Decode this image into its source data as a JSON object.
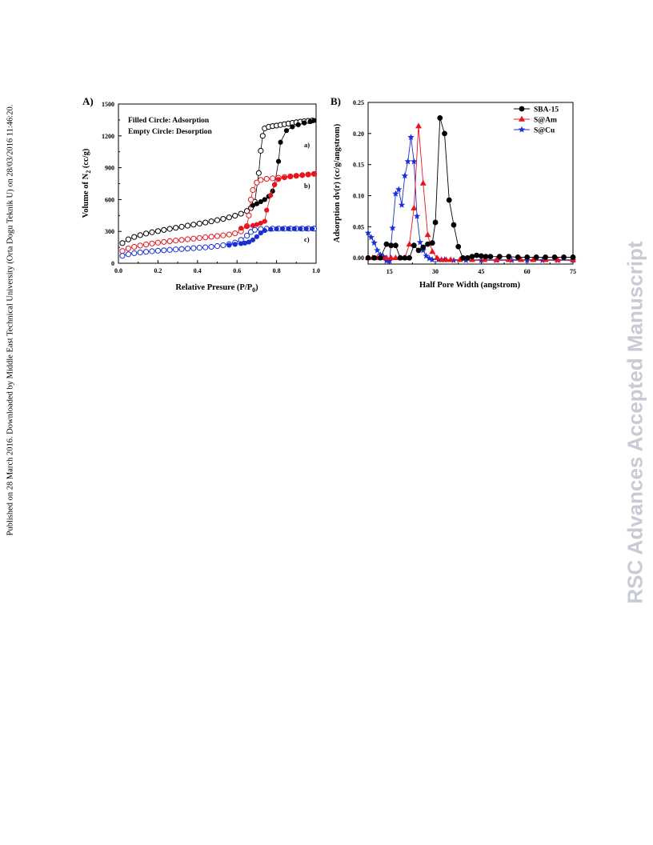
{
  "side_note": "Published on 28 March 2016. Downloaded by Middle East Technical University (Orta Dogu Teknik U) on 28/03/2016 11:46:20.",
  "watermark": "RSC Advances Accepted Manuscript",
  "chart_data": [
    {
      "panel_label": "A)",
      "type": "scatter",
      "xlabel": "Relative Presure (P/P",
      "xlabel_sub": "0",
      "xlabel_end": ")",
      "ylabel": "Volume of N",
      "ylabel_sub": "2",
      "ylabel_end": " (cc/g)",
      "xlim": [
        0,
        1.0
      ],
      "ylim": [
        0,
        1500
      ],
      "xticks": [
        "0.0",
        "0.2",
        "0.4",
        "0.6",
        "0.8",
        "1.0"
      ],
      "yticks": [
        "0",
        "300",
        "600",
        "900",
        "1200",
        "1500"
      ],
      "annotations": [
        "Filled Circle: Adsorption",
        "Empty Circle: Desorption"
      ],
      "curve_labels": [
        "a)",
        "b)",
        "c)"
      ],
      "series": [
        {
          "label": "a)",
          "color": "#000000",
          "desorption": [
            [
              0.02,
              190
            ],
            [
              0.05,
              225
            ],
            [
              0.08,
              248
            ],
            [
              0.11,
              265
            ],
            [
              0.14,
              280
            ],
            [
              0.17,
              292
            ],
            [
              0.2,
              303
            ],
            [
              0.23,
              314
            ],
            [
              0.26,
              324
            ],
            [
              0.29,
              334
            ],
            [
              0.32,
              344
            ],
            [
              0.35,
              354
            ],
            [
              0.38,
              364
            ],
            [
              0.41,
              374
            ],
            [
              0.44,
              384
            ],
            [
              0.47,
              395
            ],
            [
              0.5,
              406
            ],
            [
              0.53,
              418
            ],
            [
              0.56,
              432
            ],
            [
              0.59,
              448
            ],
            [
              0.62,
              467
            ],
            [
              0.65,
              492
            ],
            [
              0.67,
              520
            ],
            [
              0.69,
              580
            ],
            [
              0.71,
              850
            ],
            [
              0.72,
              1060
            ],
            [
              0.73,
              1200
            ],
            [
              0.74,
              1270
            ],
            [
              0.76,
              1285
            ],
            [
              0.78,
              1292
            ],
            [
              0.8,
              1297
            ],
            [
              0.82,
              1303
            ],
            [
              0.84,
              1310
            ],
            [
              0.86,
              1316
            ],
            [
              0.88,
              1322
            ],
            [
              0.9,
              1328
            ],
            [
              0.92,
              1333
            ],
            [
              0.94,
              1337
            ],
            [
              0.96,
              1341
            ],
            [
              0.98,
              1345
            ]
          ],
          "adsorption": [
            [
              0.68,
              545
            ],
            [
              0.7,
              560
            ],
            [
              0.72,
              580
            ],
            [
              0.74,
              600
            ],
            [
              0.76,
              630
            ],
            [
              0.78,
              680
            ],
            [
              0.79,
              740
            ],
            [
              0.81,
              960
            ],
            [
              0.82,
              1140
            ],
            [
              0.85,
              1250
            ],
            [
              0.88,
              1285
            ],
            [
              0.91,
              1305
            ],
            [
              0.94,
              1322
            ],
            [
              0.97,
              1335
            ],
            [
              0.99,
              1345
            ]
          ]
        },
        {
          "label": "b)",
          "color": "#e8141e",
          "desorption": [
            [
              0.02,
              115
            ],
            [
              0.05,
              140
            ],
            [
              0.08,
              155
            ],
            [
              0.11,
              167
            ],
            [
              0.14,
              177
            ],
            [
              0.17,
              186
            ],
            [
              0.2,
              194
            ],
            [
              0.23,
              201
            ],
            [
              0.26,
              208
            ],
            [
              0.29,
              214
            ],
            [
              0.32,
              220
            ],
            [
              0.35,
              226
            ],
            [
              0.38,
              232
            ],
            [
              0.41,
              238
            ],
            [
              0.44,
              244
            ],
            [
              0.47,
              250
            ],
            [
              0.5,
              256
            ],
            [
              0.53,
              263
            ],
            [
              0.56,
              271
            ],
            [
              0.59,
              282
            ],
            [
              0.62,
              300
            ],
            [
              0.65,
              350
            ],
            [
              0.66,
              450
            ],
            [
              0.67,
              600
            ],
            [
              0.68,
              690
            ],
            [
              0.7,
              760
            ],
            [
              0.72,
              785
            ],
            [
              0.75,
              795
            ],
            [
              0.78,
              800
            ],
            [
              0.81,
              805
            ],
            [
              0.84,
              812
            ],
            [
              0.87,
              818
            ],
            [
              0.9,
              824
            ],
            [
              0.93,
              830
            ],
            [
              0.96,
              836
            ],
            [
              0.99,
              842
            ]
          ],
          "adsorption": [
            [
              0.62,
              330
            ],
            [
              0.65,
              345
            ],
            [
              0.68,
              355
            ],
            [
              0.7,
              365
            ],
            [
              0.72,
              378
            ],
            [
              0.74,
              395
            ],
            [
              0.75,
              500
            ],
            [
              0.77,
              640
            ],
            [
              0.79,
              740
            ],
            [
              0.81,
              790
            ],
            [
              0.84,
              805
            ],
            [
              0.87,
              815
            ],
            [
              0.9,
              822
            ],
            [
              0.93,
              830
            ],
            [
              0.96,
              836
            ],
            [
              0.99,
              842
            ]
          ]
        },
        {
          "label": "c)",
          "color": "#1a2ed8",
          "desorption": [
            [
              0.02,
              70
            ],
            [
              0.05,
              85
            ],
            [
              0.08,
              95
            ],
            [
              0.11,
              102
            ],
            [
              0.14,
              108
            ],
            [
              0.17,
              113
            ],
            [
              0.2,
              118
            ],
            [
              0.23,
              122
            ],
            [
              0.26,
              126
            ],
            [
              0.29,
              130
            ],
            [
              0.32,
              134
            ],
            [
              0.35,
              138
            ],
            [
              0.38,
              142
            ],
            [
              0.41,
              146
            ],
            [
              0.44,
              150
            ],
            [
              0.47,
              155
            ],
            [
              0.5,
              162
            ],
            [
              0.53,
              170
            ],
            [
              0.56,
              180
            ],
            [
              0.59,
              195
            ],
            [
              0.62,
              220
            ],
            [
              0.65,
              260
            ],
            [
              0.67,
              295
            ],
            [
              0.69,
              315
            ],
            [
              0.72,
              322
            ],
            [
              0.75,
              325
            ],
            [
              0.78,
              326
            ],
            [
              0.81,
              326
            ],
            [
              0.84,
              326
            ],
            [
              0.87,
              326
            ],
            [
              0.9,
              326
            ],
            [
              0.93,
              326
            ],
            [
              0.96,
              326
            ],
            [
              0.99,
              326
            ]
          ],
          "adsorption": [
            [
              0.56,
              170
            ],
            [
              0.59,
              178
            ],
            [
              0.62,
              185
            ],
            [
              0.64,
              190
            ],
            [
              0.66,
              200
            ],
            [
              0.68,
              220
            ],
            [
              0.7,
              250
            ],
            [
              0.72,
              285
            ],
            [
              0.74,
              308
            ],
            [
              0.77,
              320
            ],
            [
              0.8,
              324
            ],
            [
              0.83,
              325
            ],
            [
              0.86,
              325
            ],
            [
              0.89,
              325
            ],
            [
              0.92,
              325
            ],
            [
              0.95,
              325
            ],
            [
              0.98,
              325
            ]
          ]
        }
      ]
    },
    {
      "panel_label": "B)",
      "type": "line",
      "xlabel": "Half Pore Width (angstrom)",
      "ylabel": "Adsorption dv(r) (cc/g/angstrom)",
      "xlim": [
        8,
        75
      ],
      "ylim": [
        -0.01,
        0.25
      ],
      "xticks": [
        "15",
        "30",
        "45",
        "60",
        "75"
      ],
      "yticks": [
        "0.00",
        "0.05",
        "0.10",
        "0.15",
        "0.20",
        "0.25"
      ],
      "legend_position": "top-right",
      "series": [
        {
          "name": "SBA-15",
          "color": "#000000",
          "marker": "circle",
          "points": [
            [
              8,
              0
            ],
            [
              10,
              0
            ],
            [
              12,
              0
            ],
            [
              14,
              0.022
            ],
            [
              15.5,
              0.02
            ],
            [
              17,
              0.02
            ],
            [
              18.5,
              0
            ],
            [
              20,
              0
            ],
            [
              21.5,
              0
            ],
            [
              23,
              0.02
            ],
            [
              24.5,
              0.012
            ],
            [
              26,
              0.017
            ],
            [
              27.5,
              0.022
            ],
            [
              29,
              0.024
            ],
            [
              30,
              0.057
            ],
            [
              31.5,
              0.225
            ],
            [
              33,
              0.2
            ],
            [
              34.5,
              0.093
            ],
            [
              36,
              0.053
            ],
            [
              37.5,
              0.018
            ],
            [
              39,
              0
            ],
            [
              40.5,
              0
            ],
            [
              42,
              0.002
            ],
            [
              43.5,
              0.004
            ],
            [
              45,
              0.003
            ],
            [
              46.5,
              0.002
            ],
            [
              48,
              0.002
            ],
            [
              51,
              0.002
            ],
            [
              54,
              0.002
            ],
            [
              57,
              0.001
            ],
            [
              60,
              0.001
            ],
            [
              63,
              0.001
            ],
            [
              66,
              0.001
            ],
            [
              69,
              0.001
            ],
            [
              72,
              0.001
            ],
            [
              75,
              0.001
            ]
          ]
        },
        {
          "name": "S@Am",
          "color": "#e8141e",
          "marker": "triangle",
          "points": [
            [
              8,
              0
            ],
            [
              9.5,
              0
            ],
            [
              11,
              0
            ],
            [
              12.5,
              0
            ],
            [
              14,
              0
            ],
            [
              15.5,
              0
            ],
            [
              17,
              0
            ],
            [
              18.5,
              0
            ],
            [
              20,
              0
            ],
            [
              21.5,
              0.022
            ],
            [
              23,
              0.08
            ],
            [
              24.5,
              0.212
            ],
            [
              26,
              0.12
            ],
            [
              27.5,
              0.037
            ],
            [
              29,
              0.01
            ],
            [
              30.5,
              0
            ],
            [
              32,
              -0.003
            ],
            [
              33.5,
              -0.003
            ],
            [
              35,
              -0.003
            ],
            [
              38,
              -0.003
            ],
            [
              42,
              -0.003
            ],
            [
              46,
              -0.003
            ],
            [
              50,
              -0.003
            ],
            [
              54,
              -0.003
            ],
            [
              58,
              -0.003
            ],
            [
              62,
              -0.003
            ],
            [
              66,
              -0.003
            ],
            [
              70,
              -0.003
            ],
            [
              75,
              -0.003
            ]
          ]
        },
        {
          "name": "S@Cu",
          "color": "#1a2ed8",
          "marker": "star",
          "points": [
            [
              8,
              0.04
            ],
            [
              9,
              0.033
            ],
            [
              10,
              0.024
            ],
            [
              11,
              0.012
            ],
            [
              12,
              0.005
            ],
            [
              13,
              0.002
            ],
            [
              14,
              -0.005
            ],
            [
              15,
              -0.005
            ],
            [
              16,
              0.048
            ],
            [
              17,
              0.103
            ],
            [
              18,
              0.11
            ],
            [
              19,
              0.085
            ],
            [
              20,
              0.132
            ],
            [
              21,
              0.155
            ],
            [
              22,
              0.194
            ],
            [
              23,
              0.155
            ],
            [
              24,
              0.067
            ],
            [
              25,
              0.025
            ],
            [
              26,
              0.012
            ],
            [
              27,
              0.003
            ],
            [
              28,
              -0.001
            ],
            [
              29,
              -0.003
            ],
            [
              31,
              -0.003
            ],
            [
              33,
              -0.003
            ],
            [
              36,
              -0.004
            ],
            [
              40,
              -0.004
            ],
            [
              45,
              -0.004
            ],
            [
              50,
              -0.004
            ],
            [
              55,
              -0.004
            ],
            [
              60,
              -0.004
            ],
            [
              65,
              -0.004
            ],
            [
              70,
              -0.004
            ],
            [
              75,
              -0.004
            ]
          ]
        }
      ]
    }
  ]
}
